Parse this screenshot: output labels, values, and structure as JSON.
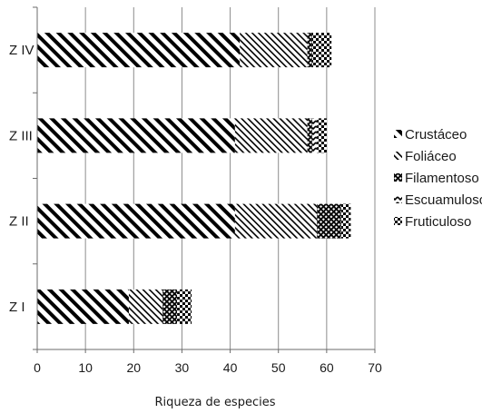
{
  "chart_data": {
    "type": "bar",
    "orientation": "horizontal",
    "stacked": true,
    "categories": [
      "Z I",
      "Z II",
      "Z III",
      "Z IV"
    ],
    "series": [
      {
        "name": "Crustáceo",
        "pattern": "wide-diagonal-hatch",
        "values": [
          19,
          41,
          41,
          42
        ]
      },
      {
        "name": "Foliáceo",
        "pattern": "narrow-diagonal-hatch",
        "values": [
          7,
          17,
          15,
          14
        ]
      },
      {
        "name": "Filamentoso",
        "pattern": "crosshatch",
        "values": [
          3,
          5,
          1,
          1
        ]
      },
      {
        "name": "Escuamuloso",
        "pattern": "zigzag",
        "values": [
          0,
          0,
          1,
          0
        ]
      },
      {
        "name": "Fruticuloso",
        "pattern": "checker",
        "values": [
          3,
          2,
          2,
          4
        ]
      }
    ],
    "xticks": [
      "0",
      "10",
      "20",
      "30",
      "40",
      "50",
      "60",
      "70"
    ],
    "xlim": [
      0,
      70
    ],
    "xlabel": "Riqueza de especies",
    "ylabel": "",
    "grid": "vertical",
    "legend_position": "right"
  }
}
